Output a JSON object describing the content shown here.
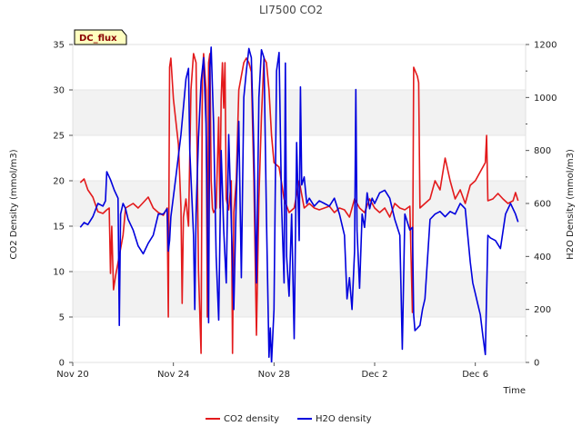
{
  "chart_data": {
    "type": "line",
    "title": "LI7500 CO2",
    "badge": "DC_flux",
    "xlabel": "Time",
    "ylabel": "CO2 Density (mmol/m3)",
    "y2label": "H2O Density (mmol/m3)",
    "x_unit": "days since Nov 20",
    "xlim": [
      0,
      18
    ],
    "ylim": [
      0,
      35
    ],
    "y2lim": [
      0,
      1200
    ],
    "x_ticks": [
      {
        "value": 0,
        "label": "Nov 20"
      },
      {
        "value": 4,
        "label": "Nov 24"
      },
      {
        "value": 8,
        "label": "Nov 28"
      },
      {
        "value": 12,
        "label": "Dec 2"
      },
      {
        "value": 16,
        "label": "Dec 6"
      }
    ],
    "y_ticks": [
      0,
      5,
      10,
      15,
      20,
      25,
      30,
      35
    ],
    "y2_ticks": [
      0,
      200,
      400,
      600,
      800,
      1000,
      1200
    ],
    "grid": "horizontal alternating bands",
    "legend_position": "bottom-center",
    "series": [
      {
        "name": "CO2 density",
        "axis": "left",
        "color": "#e31a1c",
        "points": [
          [
            0.3,
            19.8
          ],
          [
            0.45,
            20.2
          ],
          [
            0.6,
            19.0
          ],
          [
            0.8,
            18.2
          ],
          [
            1.0,
            16.6
          ],
          [
            1.2,
            16.4
          ],
          [
            1.35,
            16.8
          ],
          [
            1.45,
            17.0
          ],
          [
            1.5,
            9.8
          ],
          [
            1.55,
            15.0
          ],
          [
            1.62,
            8.0
          ],
          [
            1.7,
            9.5
          ],
          [
            1.9,
            12.5
          ],
          [
            2.0,
            14.0
          ],
          [
            2.1,
            17.0
          ],
          [
            2.4,
            17.5
          ],
          [
            2.6,
            17.0
          ],
          [
            2.8,
            17.6
          ],
          [
            3.0,
            18.2
          ],
          [
            3.2,
            17.0
          ],
          [
            3.4,
            16.5
          ],
          [
            3.6,
            16.2
          ],
          [
            3.75,
            17.0
          ],
          [
            3.8,
            5.0
          ],
          [
            3.85,
            32.5
          ],
          [
            3.9,
            33.5
          ],
          [
            4.0,
            29.0
          ],
          [
            4.2,
            24.0
          ],
          [
            4.3,
            17.0
          ],
          [
            4.35,
            6.5
          ],
          [
            4.4,
            16.0
          ],
          [
            4.5,
            18.0
          ],
          [
            4.6,
            15.0
          ],
          [
            4.7,
            30.0
          ],
          [
            4.8,
            34.0
          ],
          [
            4.9,
            33.0
          ],
          [
            5.0,
            10.0
          ],
          [
            5.1,
            1.0
          ],
          [
            5.15,
            31.0
          ],
          [
            5.2,
            34.0
          ],
          [
            5.3,
            30.0
          ],
          [
            5.35,
            5.0
          ],
          [
            5.4,
            33.0
          ],
          [
            5.45,
            34.0
          ],
          [
            5.5,
            20.0
          ],
          [
            5.55,
            17.0
          ],
          [
            5.6,
            16.5
          ],
          [
            5.7,
            17.0
          ],
          [
            5.8,
            27.0
          ],
          [
            5.85,
            17.0
          ],
          [
            5.9,
            29.0
          ],
          [
            5.95,
            33.0
          ],
          [
            6.0,
            28.0
          ],
          [
            6.05,
            33.0
          ],
          [
            6.1,
            18.0
          ],
          [
            6.2,
            16.8
          ],
          [
            6.3,
            20.0
          ],
          [
            6.35,
            1.0
          ],
          [
            6.4,
            16.5
          ],
          [
            6.5,
            20.0
          ],
          [
            6.6,
            30.0
          ],
          [
            6.8,
            33.0
          ],
          [
            6.9,
            33.5
          ],
          [
            7.0,
            33.0
          ],
          [
            7.1,
            32.0
          ],
          [
            7.2,
            20.0
          ],
          [
            7.3,
            3.0
          ],
          [
            7.4,
            18.0
          ],
          [
            7.5,
            27.0
          ],
          [
            7.6,
            33.5
          ],
          [
            7.7,
            33.0
          ],
          [
            7.8,
            30.0
          ],
          [
            7.9,
            25.0
          ],
          [
            8.0,
            22.0
          ],
          [
            8.2,
            21.5
          ],
          [
            8.4,
            18.0
          ],
          [
            8.6,
            16.5
          ],
          [
            8.8,
            17.0
          ],
          [
            9.0,
            20.0
          ],
          [
            9.2,
            17.0
          ],
          [
            9.4,
            17.5
          ],
          [
            9.6,
            17.0
          ],
          [
            9.8,
            16.8
          ],
          [
            10.0,
            17.0
          ],
          [
            10.2,
            17.2
          ],
          [
            10.4,
            16.5
          ],
          [
            10.6,
            17.0
          ],
          [
            10.8,
            16.8
          ],
          [
            11.0,
            16.0
          ],
          [
            11.2,
            18.0
          ],
          [
            11.4,
            17.0
          ],
          [
            11.6,
            16.5
          ],
          [
            11.8,
            18.0
          ],
          [
            12.0,
            17.0
          ],
          [
            12.2,
            16.5
          ],
          [
            12.4,
            17.0
          ],
          [
            12.6,
            16.0
          ],
          [
            12.8,
            17.5
          ],
          [
            13.0,
            17.0
          ],
          [
            13.2,
            16.8
          ],
          [
            13.4,
            17.2
          ],
          [
            13.5,
            5.5
          ],
          [
            13.55,
            32.5
          ],
          [
            13.7,
            31.5
          ],
          [
            13.75,
            30.8
          ],
          [
            13.8,
            17.0
          ],
          [
            14.0,
            17.5
          ],
          [
            14.2,
            18.0
          ],
          [
            14.4,
            20.0
          ],
          [
            14.6,
            19.0
          ],
          [
            14.8,
            22.5
          ],
          [
            15.0,
            20.0
          ],
          [
            15.2,
            18.0
          ],
          [
            15.4,
            19.0
          ],
          [
            15.6,
            17.5
          ],
          [
            15.8,
            19.5
          ],
          [
            16.0,
            20.0
          ],
          [
            16.2,
            21.0
          ],
          [
            16.4,
            22.0
          ],
          [
            16.45,
            25.0
          ],
          [
            16.5,
            17.8
          ],
          [
            16.7,
            18.0
          ],
          [
            16.9,
            18.6
          ],
          [
            17.1,
            18.0
          ],
          [
            17.3,
            17.5
          ],
          [
            17.5,
            17.8
          ],
          [
            17.6,
            18.7
          ],
          [
            17.7,
            17.8
          ]
        ]
      },
      {
        "name": "H2O density",
        "axis": "right",
        "color": "#0000dd",
        "points": [
          [
            0.3,
            510
          ],
          [
            0.45,
            528
          ],
          [
            0.6,
            520
          ],
          [
            0.8,
            550
          ],
          [
            1.0,
            600
          ],
          [
            1.2,
            590
          ],
          [
            1.3,
            610
          ],
          [
            1.35,
            720
          ],
          [
            1.5,
            690
          ],
          [
            1.65,
            650
          ],
          [
            1.8,
            620
          ],
          [
            1.85,
            140
          ],
          [
            1.9,
            560
          ],
          [
            2.0,
            600
          ],
          [
            2.1,
            580
          ],
          [
            2.2,
            540
          ],
          [
            2.4,
            500
          ],
          [
            2.6,
            440
          ],
          [
            2.8,
            410
          ],
          [
            3.0,
            450
          ],
          [
            3.2,
            480
          ],
          [
            3.4,
            560
          ],
          [
            3.6,
            560
          ],
          [
            3.75,
            580
          ],
          [
            3.8,
            420
          ],
          [
            3.85,
            460
          ],
          [
            3.9,
            550
          ],
          [
            4.1,
            700
          ],
          [
            4.3,
            860
          ],
          [
            4.5,
            1070
          ],
          [
            4.6,
            1110
          ],
          [
            4.65,
            800
          ],
          [
            4.8,
            480
          ],
          [
            4.85,
            200
          ],
          [
            4.9,
            560
          ],
          [
            5.0,
            850
          ],
          [
            5.1,
            1060
          ],
          [
            5.2,
            1150
          ],
          [
            5.3,
            900
          ],
          [
            5.4,
            150
          ],
          [
            5.45,
            1110
          ],
          [
            5.5,
            1190
          ],
          [
            5.6,
            900
          ],
          [
            5.7,
            400
          ],
          [
            5.8,
            160
          ],
          [
            5.9,
            800
          ],
          [
            6.0,
            500
          ],
          [
            6.1,
            300
          ],
          [
            6.2,
            860
          ],
          [
            6.3,
            540
          ],
          [
            6.4,
            200
          ],
          [
            6.5,
            620
          ],
          [
            6.6,
            910
          ],
          [
            6.7,
            320
          ],
          [
            6.8,
            1000
          ],
          [
            6.9,
            1100
          ],
          [
            7.0,
            1185
          ],
          [
            7.1,
            1150
          ],
          [
            7.2,
            800
          ],
          [
            7.3,
            300
          ],
          [
            7.4,
            1000
          ],
          [
            7.5,
            1180
          ],
          [
            7.6,
            1150
          ],
          [
            7.7,
            550
          ],
          [
            7.8,
            20
          ],
          [
            7.85,
            130
          ],
          [
            7.9,
            0
          ],
          [
            8.0,
            200
          ],
          [
            8.1,
            1100
          ],
          [
            8.2,
            1170
          ],
          [
            8.3,
            600
          ],
          [
            8.4,
            300
          ],
          [
            8.45,
            1130
          ],
          [
            8.5,
            400
          ],
          [
            8.6,
            250
          ],
          [
            8.7,
            560
          ],
          [
            8.8,
            90
          ],
          [
            8.9,
            830
          ],
          [
            9.0,
            460
          ],
          [
            9.05,
            1040
          ],
          [
            9.1,
            670
          ],
          [
            9.2,
            700
          ],
          [
            9.3,
            600
          ],
          [
            9.4,
            620
          ],
          [
            9.6,
            590
          ],
          [
            9.8,
            610
          ],
          [
            10.0,
            600
          ],
          [
            10.2,
            590
          ],
          [
            10.4,
            620
          ],
          [
            10.6,
            560
          ],
          [
            10.8,
            480
          ],
          [
            10.9,
            240
          ],
          [
            11.0,
            320
          ],
          [
            11.1,
            200
          ],
          [
            11.2,
            420
          ],
          [
            11.25,
            1030
          ],
          [
            11.3,
            500
          ],
          [
            11.4,
            280
          ],
          [
            11.5,
            560
          ],
          [
            11.6,
            510
          ],
          [
            11.7,
            640
          ],
          [
            11.8,
            580
          ],
          [
            11.9,
            620
          ],
          [
            12.0,
            600
          ],
          [
            12.2,
            640
          ],
          [
            12.4,
            650
          ],
          [
            12.6,
            620
          ],
          [
            12.8,
            540
          ],
          [
            13.0,
            480
          ],
          [
            13.1,
            50
          ],
          [
            13.2,
            560
          ],
          [
            13.4,
            500
          ],
          [
            13.5,
            510
          ],
          [
            13.55,
            180
          ],
          [
            13.6,
            120
          ],
          [
            13.8,
            140
          ],
          [
            13.9,
            200
          ],
          [
            14.0,
            240
          ],
          [
            14.2,
            540
          ],
          [
            14.4,
            560
          ],
          [
            14.6,
            570
          ],
          [
            14.8,
            550
          ],
          [
            15.0,
            570
          ],
          [
            15.2,
            560
          ],
          [
            15.4,
            600
          ],
          [
            15.6,
            580
          ],
          [
            15.8,
            380
          ],
          [
            15.9,
            300
          ],
          [
            16.0,
            260
          ],
          [
            16.1,
            220
          ],
          [
            16.2,
            180
          ],
          [
            16.3,
            100
          ],
          [
            16.4,
            30
          ],
          [
            16.5,
            480
          ],
          [
            16.6,
            470
          ],
          [
            16.8,
            460
          ],
          [
            17.0,
            430
          ],
          [
            17.2,
            560
          ],
          [
            17.4,
            600
          ],
          [
            17.6,
            560
          ],
          [
            17.7,
            530
          ]
        ]
      }
    ]
  }
}
